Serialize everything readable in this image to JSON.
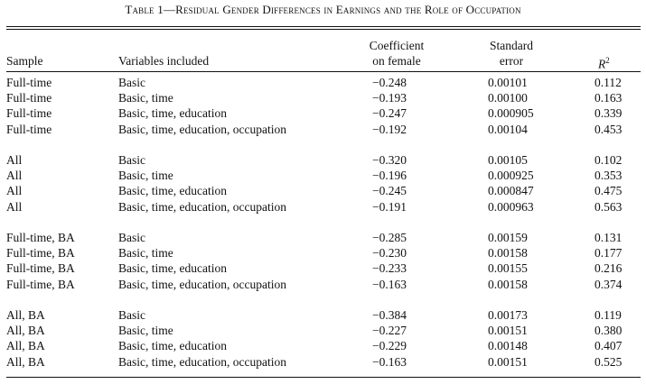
{
  "caption": "Table 1—Residual Gender Differences in Earnings and the Role of Occupation",
  "headers": {
    "sample": "Sample",
    "variables": "Variables included",
    "coef_line1": "Coefficient",
    "coef_line2": "on female",
    "se_line1": "Standard",
    "se_line2": "error",
    "r2": "R",
    "r2_sup": "2"
  },
  "rows": [
    {
      "sample": "Full-time",
      "variables": "Basic",
      "coef": "−0.248",
      "se": "0.00101",
      "r2": "0.112"
    },
    {
      "sample": "Full-time",
      "variables": "Basic, time",
      "coef": "−0.193",
      "se": "0.00100",
      "r2": "0.163"
    },
    {
      "sample": "Full-time",
      "variables": "Basic, time, education",
      "coef": "−0.247",
      "se": "0.000905",
      "r2": "0.339"
    },
    {
      "sample": "Full-time",
      "variables": "Basic, time, education, occupation",
      "coef": "−0.192",
      "se": "0.00104",
      "r2": "0.453"
    },
    {
      "sample": "All",
      "variables": "Basic",
      "coef": "−0.320",
      "se": "0.00105",
      "r2": "0.102"
    },
    {
      "sample": "All",
      "variables": "Basic, time",
      "coef": "−0.196",
      "se": "0.000925",
      "r2": "0.353"
    },
    {
      "sample": "All",
      "variables": "Basic, time, education",
      "coef": "−0.245",
      "se": "0.000847",
      "r2": "0.475"
    },
    {
      "sample": "All",
      "variables": "Basic, time, education, occupation",
      "coef": "−0.191",
      "se": "0.000963",
      "r2": "0.563"
    },
    {
      "sample": "Full-time, BA",
      "variables": "Basic",
      "coef": "−0.285",
      "se": "0.00159",
      "r2": "0.131"
    },
    {
      "sample": "Full-time, BA",
      "variables": "Basic, time",
      "coef": "−0.230",
      "se": "0.00158",
      "r2": "0.177"
    },
    {
      "sample": "Full-time, BA",
      "variables": "Basic, time, education",
      "coef": "−0.233",
      "se": "0.00155",
      "r2": "0.216"
    },
    {
      "sample": "Full-time, BA",
      "variables": "Basic, time, education, occupation",
      "coef": "−0.163",
      "se": "0.00158",
      "r2": "0.374"
    },
    {
      "sample": "All, BA",
      "variables": "Basic",
      "coef": "−0.384",
      "se": "0.00173",
      "r2": "0.119"
    },
    {
      "sample": "All, BA",
      "variables": "Basic, time",
      "coef": "−0.227",
      "se": "0.00151",
      "r2": "0.380"
    },
    {
      "sample": "All, BA",
      "variables": "Basic, time, education",
      "coef": "−0.229",
      "se": "0.00148",
      "r2": "0.407"
    },
    {
      "sample": "All, BA",
      "variables": "Basic, time, education, occupation",
      "coef": "−0.163",
      "se": "0.00151",
      "r2": "0.525"
    }
  ]
}
